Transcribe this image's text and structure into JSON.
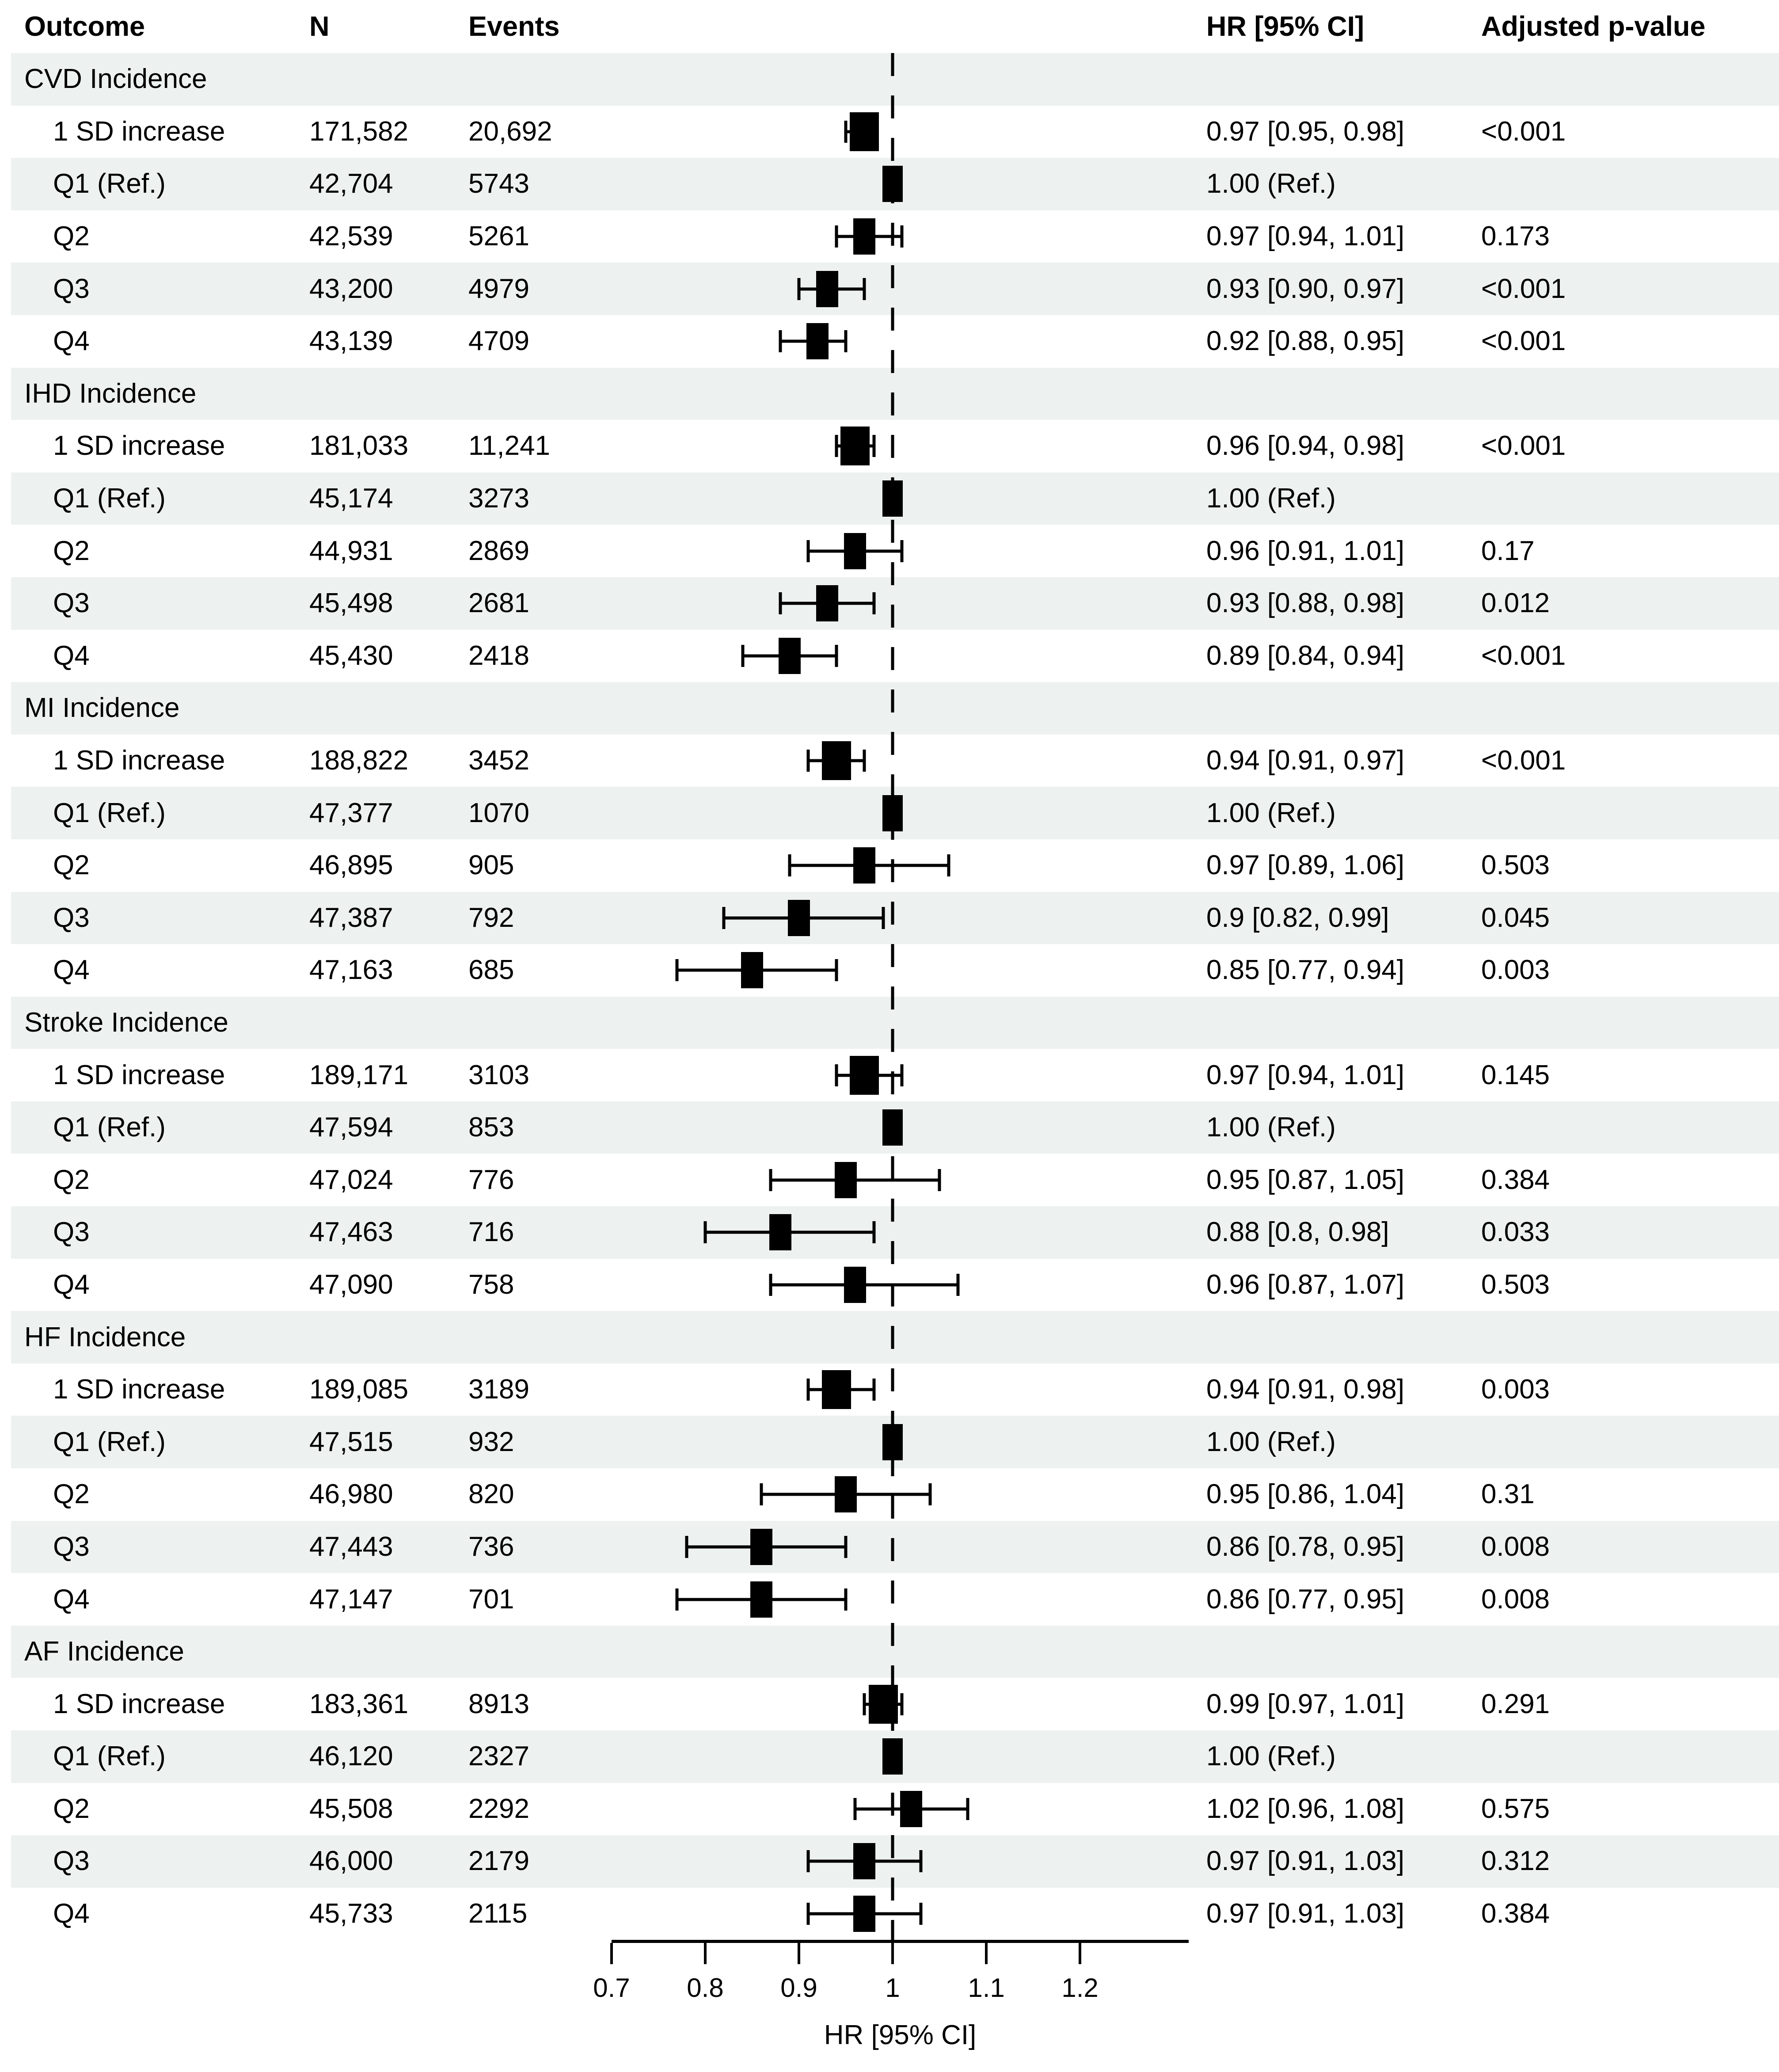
{
  "header": {
    "outcome": "Outcome",
    "n": "N",
    "events": "Events",
    "hr": "HR [95% CI]",
    "p": "Adjusted p-value"
  },
  "colors": {
    "stripe": "#edf1ef",
    "marker": "#000000",
    "reference_line": "#000000"
  },
  "chart_data": {
    "type": "forest",
    "axis": {
      "label": "HR [95% CI]",
      "min": 0.7,
      "max": 1.316,
      "reference": 1.0,
      "tick_values": [
        0.7,
        0.8,
        0.9,
        1,
        1.1,
        1.2
      ],
      "tick_labels": [
        "0.7",
        "0.8",
        "0.9",
        "1",
        "1.1",
        "1.2"
      ]
    },
    "sections": [
      {
        "label": "CVD Incidence",
        "rows": [
          {
            "label": "1 SD increase",
            "n": "171,582",
            "events": "20,692",
            "hr": 0.97,
            "lo": 0.95,
            "hi": 0.98,
            "hr_text": "0.97 [0.95, 0.98]",
            "p": "<0.001",
            "ref": false,
            "big": true
          },
          {
            "label": "Q1 (Ref.)",
            "n": "42,704",
            "events": "5743",
            "hr": 1.0,
            "hr_text": "1.00 (Ref.)",
            "p": "",
            "ref": true,
            "big": false
          },
          {
            "label": "Q2",
            "n": "42,539",
            "events": "5261",
            "hr": 0.97,
            "lo": 0.94,
            "hi": 1.01,
            "hr_text": "0.97 [0.94, 1.01]",
            "p": "0.173",
            "ref": false,
            "big": false
          },
          {
            "label": "Q3",
            "n": "43,200",
            "events": "4979",
            "hr": 0.93,
            "lo": 0.9,
            "hi": 0.97,
            "hr_text": "0.93 [0.90, 0.97]",
            "p": "<0.001",
            "ref": false,
            "big": false
          },
          {
            "label": "Q4",
            "n": "43,139",
            "events": "4709",
            "hr": 0.92,
            "lo": 0.88,
            "hi": 0.95,
            "hr_text": "0.92 [0.88, 0.95]",
            "p": "<0.001",
            "ref": false,
            "big": false
          }
        ]
      },
      {
        "label": "IHD Incidence",
        "rows": [
          {
            "label": "1 SD increase",
            "n": "181,033",
            "events": "11,241",
            "hr": 0.96,
            "lo": 0.94,
            "hi": 0.98,
            "hr_text": "0.96 [0.94, 0.98]",
            "p": "<0.001",
            "ref": false,
            "big": true
          },
          {
            "label": "Q1 (Ref.)",
            "n": "45,174",
            "events": "3273",
            "hr": 1.0,
            "hr_text": "1.00 (Ref.)",
            "p": "",
            "ref": true,
            "big": false
          },
          {
            "label": "Q2",
            "n": "44,931",
            "events": "2869",
            "hr": 0.96,
            "lo": 0.91,
            "hi": 1.01,
            "hr_text": "0.96 [0.91, 1.01]",
            "p": "0.17",
            "ref": false,
            "big": false
          },
          {
            "label": "Q3",
            "n": "45,498",
            "events": "2681",
            "hr": 0.93,
            "lo": 0.88,
            "hi": 0.98,
            "hr_text": "0.93 [0.88, 0.98]",
            "p": "0.012",
            "ref": false,
            "big": false
          },
          {
            "label": "Q4",
            "n": "45,430",
            "events": "2418",
            "hr": 0.89,
            "lo": 0.84,
            "hi": 0.94,
            "hr_text": "0.89 [0.84, 0.94]",
            "p": "<0.001",
            "ref": false,
            "big": false
          }
        ]
      },
      {
        "label": "MI Incidence",
        "rows": [
          {
            "label": "1 SD increase",
            "n": "188,822",
            "events": "3452",
            "hr": 0.94,
            "lo": 0.91,
            "hi": 0.97,
            "hr_text": "0.94 [0.91, 0.97]",
            "p": "<0.001",
            "ref": false,
            "big": true
          },
          {
            "label": "Q1 (Ref.)",
            "n": "47,377",
            "events": "1070",
            "hr": 1.0,
            "hr_text": "1.00 (Ref.)",
            "p": "",
            "ref": true,
            "big": false
          },
          {
            "label": "Q2",
            "n": "46,895",
            "events": "905",
            "hr": 0.97,
            "lo": 0.89,
            "hi": 1.06,
            "hr_text": "0.97 [0.89, 1.06]",
            "p": "0.503",
            "ref": false,
            "big": false
          },
          {
            "label": "Q3",
            "n": "47,387",
            "events": "792",
            "hr": 0.9,
            "lo": 0.82,
            "hi": 0.99,
            "hr_text": "0.9 [0.82, 0.99]",
            "p": "0.045",
            "ref": false,
            "big": false
          },
          {
            "label": "Q4",
            "n": "47,163",
            "events": "685",
            "hr": 0.85,
            "lo": 0.77,
            "hi": 0.94,
            "hr_text": "0.85 [0.77, 0.94]",
            "p": "0.003",
            "ref": false,
            "big": false
          }
        ]
      },
      {
        "label": "Stroke Incidence",
        "rows": [
          {
            "label": "1 SD increase",
            "n": "189,171",
            "events": "3103",
            "hr": 0.97,
            "lo": 0.94,
            "hi": 1.01,
            "hr_text": "0.97 [0.94, 1.01]",
            "p": "0.145",
            "ref": false,
            "big": true
          },
          {
            "label": "Q1 (Ref.)",
            "n": "47,594",
            "events": "853",
            "hr": 1.0,
            "hr_text": "1.00 (Ref.)",
            "p": "",
            "ref": true,
            "big": false
          },
          {
            "label": "Q2",
            "n": "47,024",
            "events": "776",
            "hr": 0.95,
            "lo": 0.87,
            "hi": 1.05,
            "hr_text": "0.95 [0.87, 1.05]",
            "p": "0.384",
            "ref": false,
            "big": false
          },
          {
            "label": "Q3",
            "n": "47,463",
            "events": "716",
            "hr": 0.88,
            "lo": 0.8,
            "hi": 0.98,
            "hr_text": "0.88 [0.8, 0.98]",
            "p": "0.033",
            "ref": false,
            "big": false
          },
          {
            "label": "Q4",
            "n": "47,090",
            "events": "758",
            "hr": 0.96,
            "lo": 0.87,
            "hi": 1.07,
            "hr_text": "0.96 [0.87, 1.07]",
            "p": "0.503",
            "ref": false,
            "big": false
          }
        ]
      },
      {
        "label": "HF Incidence",
        "rows": [
          {
            "label": "1 SD increase",
            "n": "189,085",
            "events": "3189",
            "hr": 0.94,
            "lo": 0.91,
            "hi": 0.98,
            "hr_text": "0.94 [0.91, 0.98]",
            "p": "0.003",
            "ref": false,
            "big": true
          },
          {
            "label": "Q1 (Ref.)",
            "n": "47,515",
            "events": "932",
            "hr": 1.0,
            "hr_text": "1.00 (Ref.)",
            "p": "",
            "ref": true,
            "big": false
          },
          {
            "label": "Q2",
            "n": "46,980",
            "events": "820",
            "hr": 0.95,
            "lo": 0.86,
            "hi": 1.04,
            "hr_text": "0.95 [0.86, 1.04]",
            "p": "0.31",
            "ref": false,
            "big": false
          },
          {
            "label": "Q3",
            "n": "47,443",
            "events": "736",
            "hr": 0.86,
            "lo": 0.78,
            "hi": 0.95,
            "hr_text": "0.86 [0.78, 0.95]",
            "p": "0.008",
            "ref": false,
            "big": false
          },
          {
            "label": "Q4",
            "n": "47,147",
            "events": "701",
            "hr": 0.86,
            "lo": 0.77,
            "hi": 0.95,
            "hr_text": "0.86 [0.77, 0.95]",
            "p": "0.008",
            "ref": false,
            "big": false
          }
        ]
      },
      {
        "label": "AF Incidence",
        "rows": [
          {
            "label": "1 SD increase",
            "n": "183,361",
            "events": "8913",
            "hr": 0.99,
            "lo": 0.97,
            "hi": 1.01,
            "hr_text": "0.99 [0.97, 1.01]",
            "p": "0.291",
            "ref": false,
            "big": true
          },
          {
            "label": "Q1 (Ref.)",
            "n": "46,120",
            "events": "2327",
            "hr": 1.0,
            "hr_text": "1.00 (Ref.)",
            "p": "",
            "ref": true,
            "big": false
          },
          {
            "label": "Q2",
            "n": "45,508",
            "events": "2292",
            "hr": 1.02,
            "lo": 0.96,
            "hi": 1.08,
            "hr_text": "1.02 [0.96, 1.08]",
            "p": "0.575",
            "ref": false,
            "big": false
          },
          {
            "label": "Q3",
            "n": "46,000",
            "events": "2179",
            "hr": 0.97,
            "lo": 0.91,
            "hi": 1.03,
            "hr_text": "0.97 [0.91, 1.03]",
            "p": "0.312",
            "ref": false,
            "big": false
          },
          {
            "label": "Q4",
            "n": "45,733",
            "events": "2115",
            "hr": 0.97,
            "lo": 0.91,
            "hi": 1.03,
            "hr_text": "0.97 [0.91, 1.03]",
            "p": "0.384",
            "ref": false,
            "big": false
          }
        ]
      }
    ]
  }
}
